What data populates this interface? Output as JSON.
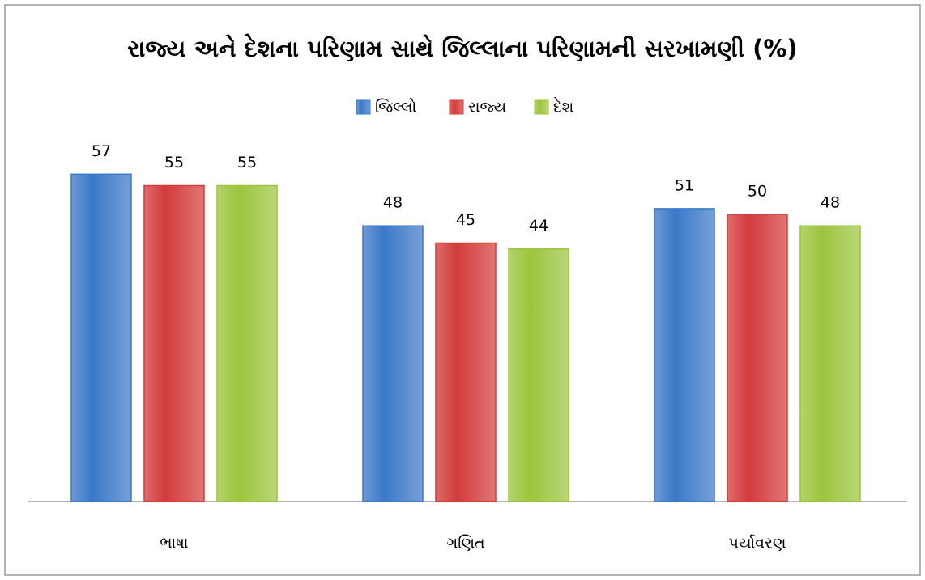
{
  "chart_data": {
    "type": "bar",
    "title": "રાજ્ય અને દેશના પરિણામ સાથે જિલ્લાના પરિણામની સરખામણી (%)",
    "categories": [
      "ભાષા",
      "ગણિત",
      "પર્યાવરણ"
    ],
    "series": [
      {
        "name": "જિલ્લો",
        "color": "#3b78c8",
        "values": [
          57,
          48,
          51
        ]
      },
      {
        "name": "રાજ્ય",
        "color": "#d33b3b",
        "values": [
          55,
          45,
          50
        ]
      },
      {
        "name": "દેશ",
        "color": "#9cc43c",
        "values": [
          55,
          44,
          48
        ]
      }
    ],
    "ylim": [
      0,
      60
    ]
  }
}
